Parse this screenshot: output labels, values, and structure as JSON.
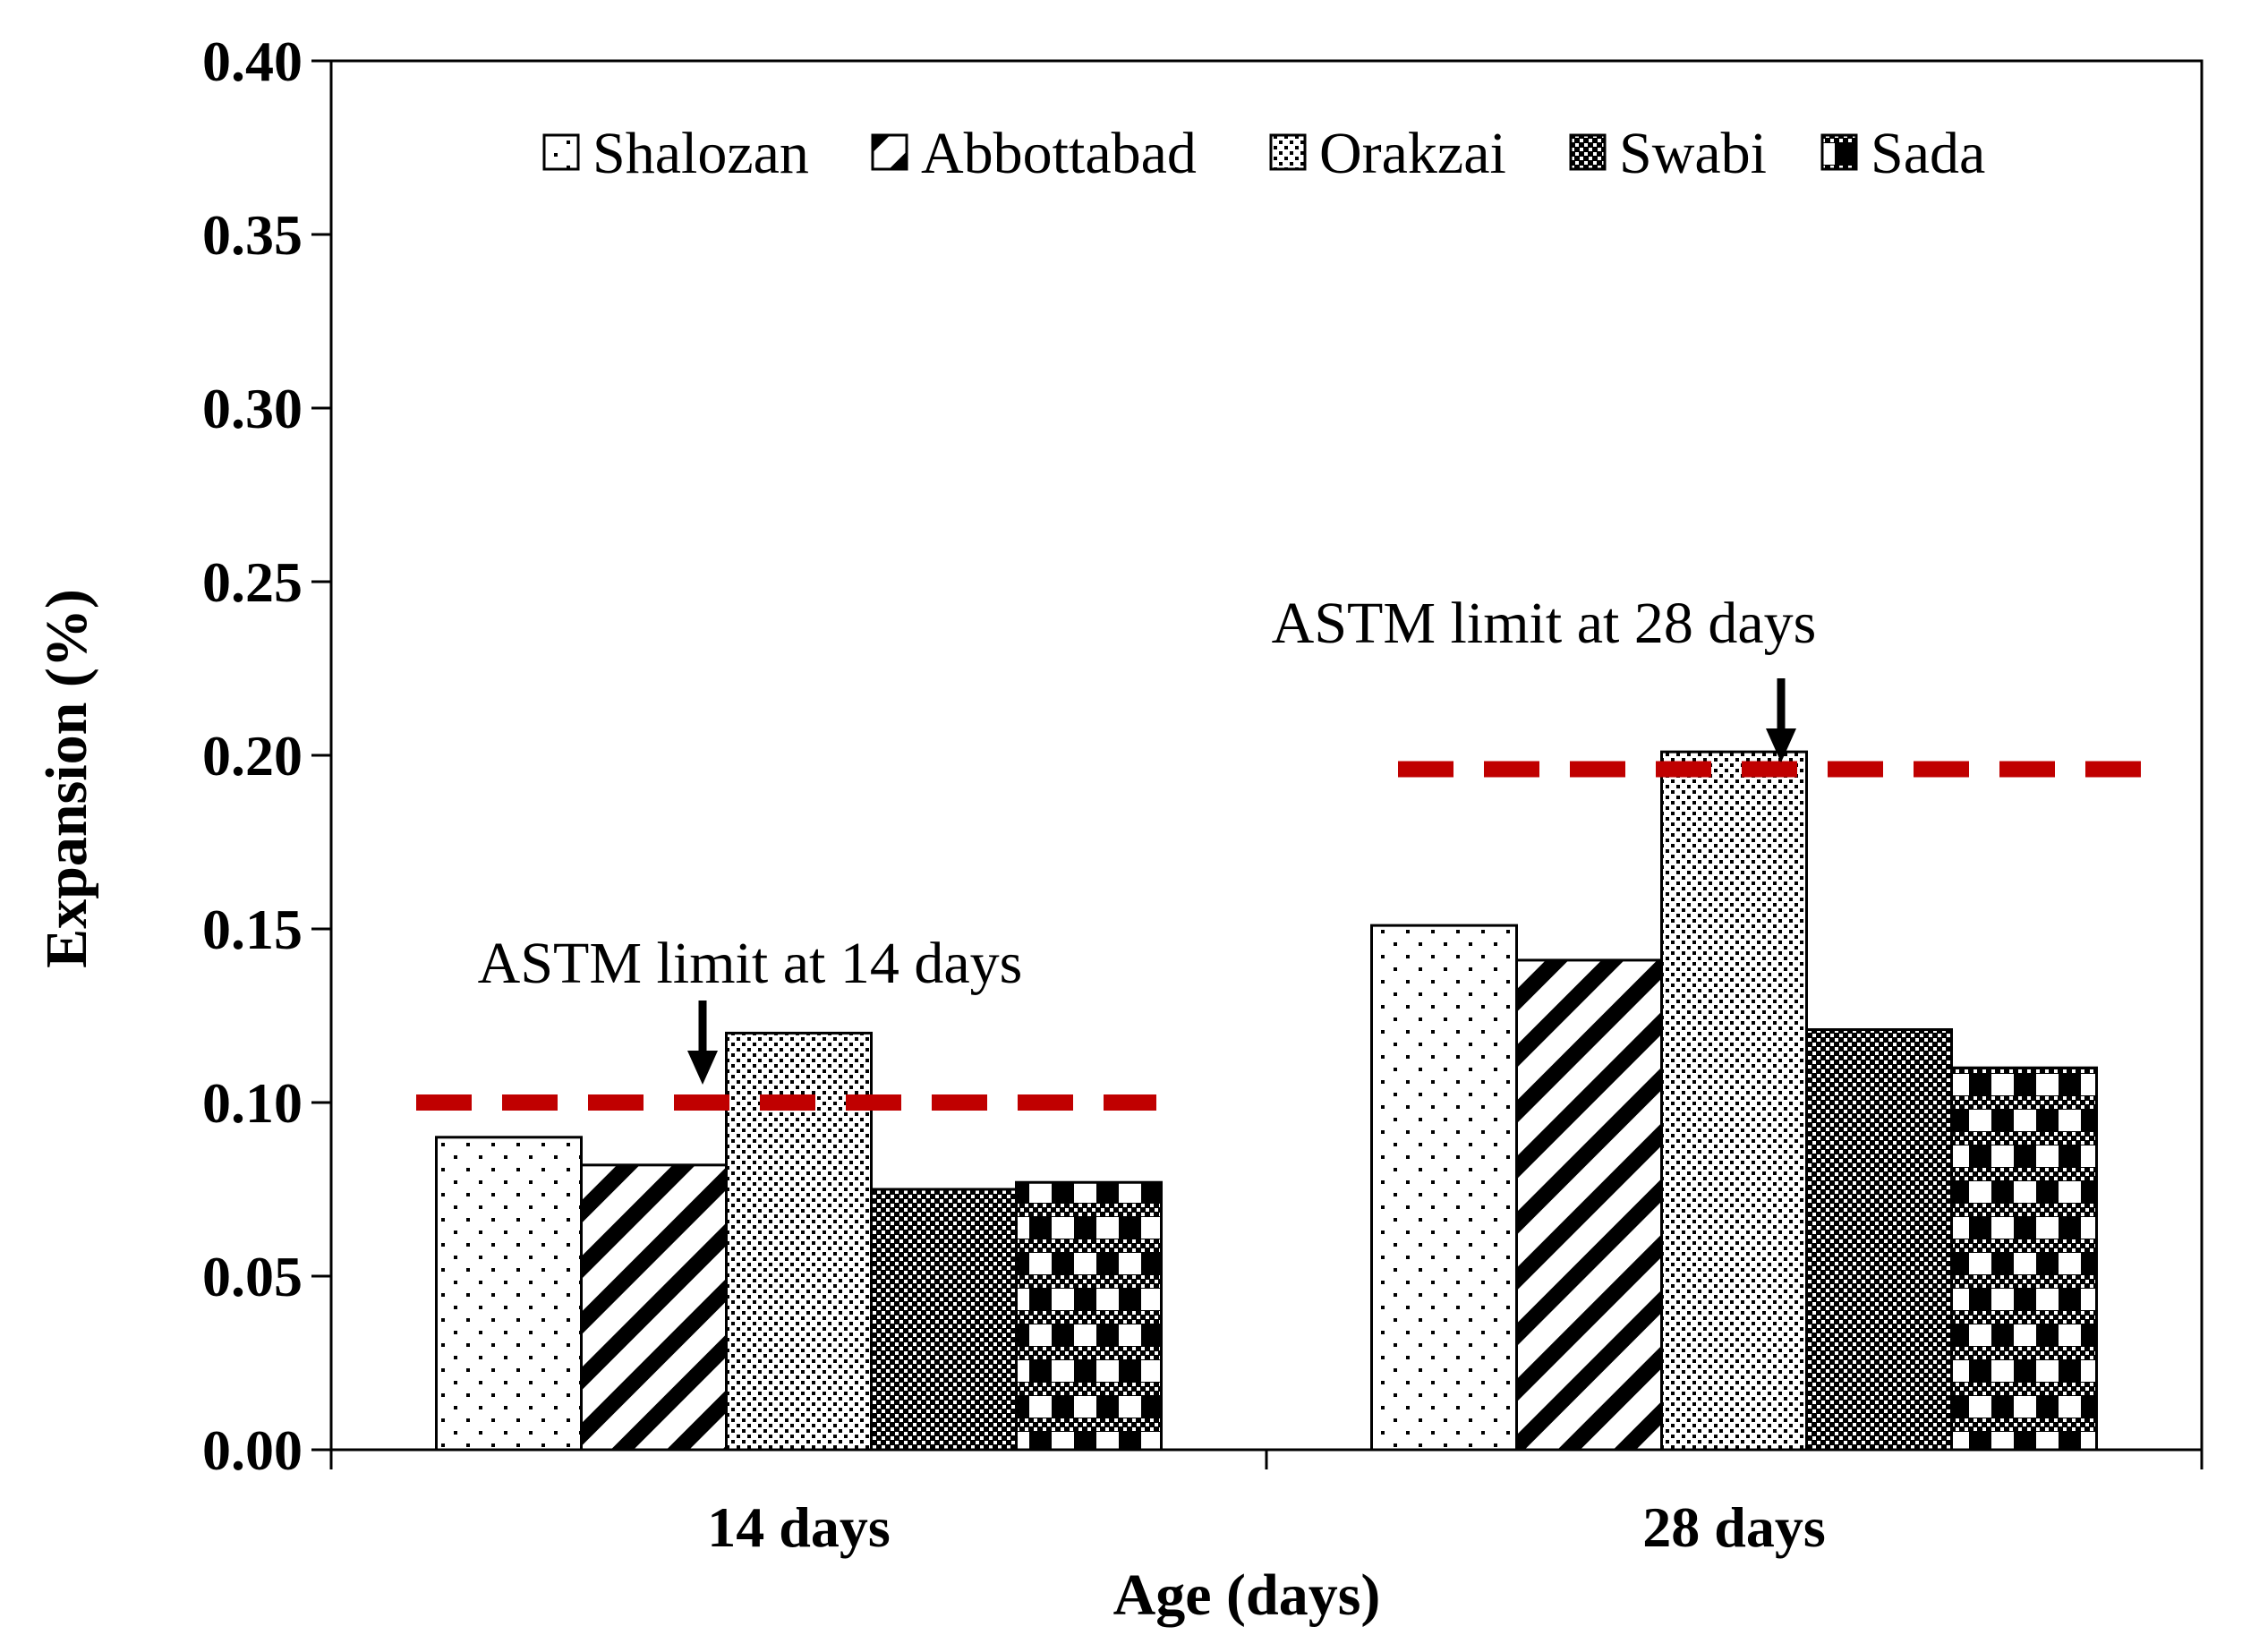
{
  "chart_data": {
    "type": "bar",
    "categories": [
      "14 days",
      "28 days"
    ],
    "series": [
      {
        "name": "Shalozan",
        "values": [
          0.09,
          0.151
        ]
      },
      {
        "name": "Abbottabad",
        "values": [
          0.082,
          0.141
        ]
      },
      {
        "name": "Orakzai",
        "values": [
          0.12,
          0.201
        ]
      },
      {
        "name": "Swabi",
        "values": [
          0.075,
          0.121
        ]
      },
      {
        "name": "Sada",
        "values": [
          0.077,
          0.11
        ]
      }
    ],
    "xlabel": "Age (days)",
    "ylabel": "Expansion (%)",
    "ylim": [
      0,
      0.4
    ],
    "yticks": [
      "0.00",
      "0.05",
      "0.10",
      "0.15",
      "0.20",
      "0.25",
      "0.30",
      "0.35",
      "0.40"
    ],
    "grid": false,
    "legend": "top",
    "reference_lines": [
      {
        "category": "14 days",
        "value": 0.1,
        "label": "ASTM limit at 14 days",
        "color": "#c00000"
      },
      {
        "category": "28 days",
        "value": 0.196,
        "label": "ASTM limit at 28 days",
        "color": "#c00000"
      }
    ]
  }
}
